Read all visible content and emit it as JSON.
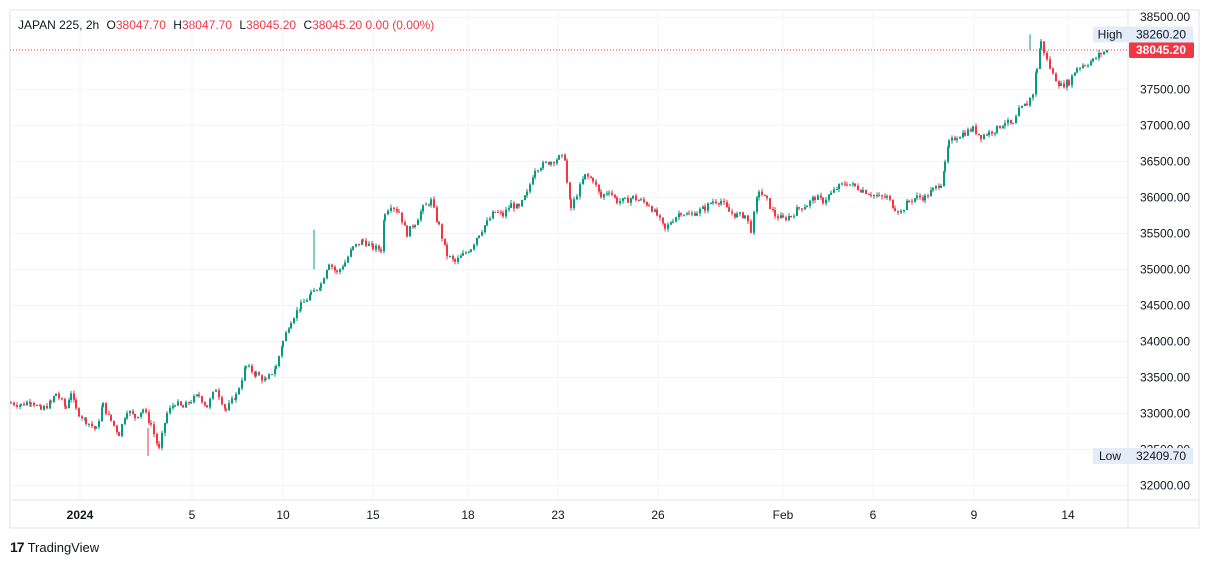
{
  "header": {
    "symbol": "JAPAN 225",
    "interval": "2h",
    "o_label": "O",
    "o_value": "38047.70",
    "h_label": "H",
    "h_value": "38047.70",
    "l_label": "L",
    "l_value": "38045.20",
    "c_label": "C",
    "c_value": "38045.20",
    "change": "0.00 (0.00%)"
  },
  "footer": {
    "brand": "TradingView",
    "logo_icon": "tradingview-logo-icon"
  },
  "colors": {
    "up": "#089981",
    "down": "#f23645",
    "grid": "#f0f3fa",
    "axis_text": "#131722",
    "label_bg": "#e3ecf7"
  },
  "chart_data": {
    "type": "candlestick",
    "title": "JAPAN 225, 2h",
    "ylim": [
      31800,
      38600
    ],
    "y_ticks": [
      "32000.00",
      "32500.00",
      "33000.00",
      "33500.00",
      "34000.00",
      "34500.00",
      "35000.00",
      "35500.00",
      "36000.00",
      "36500.00",
      "37000.00",
      "37500.00",
      "38000.00",
      "38500.00"
    ],
    "x_tick_labels": [
      "2024",
      "5",
      "10",
      "15",
      "18",
      "23",
      "26",
      "Feb",
      "6",
      "9",
      "14"
    ],
    "last_price": "38045.20",
    "high_label": "High",
    "high_value": "38260.20",
    "low_label": "Low",
    "low_value": "32409.70",
    "close_series": [
      [
        0,
        33150
      ],
      [
        10,
        33120
      ],
      [
        20,
        33180
      ],
      [
        30,
        33050
      ],
      [
        40,
        33150
      ],
      [
        45,
        33280
      ],
      [
        55,
        33080
      ],
      [
        60,
        33300
      ],
      [
        65,
        33050
      ],
      [
        75,
        32900
      ],
      [
        85,
        32780
      ],
      [
        92,
        33120
      ],
      [
        100,
        32900
      ],
      [
        108,
        32720
      ],
      [
        116,
        33050
      ],
      [
        124,
        32950
      ],
      [
        132,
        33060
      ],
      [
        140,
        32850
      ],
      [
        148,
        32500
      ],
      [
        156,
        33000
      ],
      [
        164,
        33150
      ],
      [
        172,
        33080
      ],
      [
        180,
        33180
      ],
      [
        188,
        33250
      ],
      [
        196,
        33100
      ],
      [
        205,
        33350
      ],
      [
        215,
        33050
      ],
      [
        225,
        33250
      ],
      [
        235,
        33650
      ],
      [
        245,
        33550
      ],
      [
        255,
        33450
      ],
      [
        265,
        33650
      ],
      [
        272,
        34000
      ],
      [
        280,
        34300
      ],
      [
        290,
        34500
      ],
      [
        300,
        34650
      ],
      [
        310,
        34800
      ],
      [
        318,
        35100
      ],
      [
        326,
        34950
      ],
      [
        334,
        35100
      ],
      [
        342,
        35300
      ],
      [
        352,
        35400
      ],
      [
        362,
        35300
      ],
      [
        370,
        35280
      ],
      [
        374,
        35800
      ],
      [
        380,
        35900
      ],
      [
        388,
        35800
      ],
      [
        396,
        35500
      ],
      [
        404,
        35650
      ],
      [
        412,
        35850
      ],
      [
        420,
        35950
      ],
      [
        428,
        35600
      ],
      [
        436,
        35200
      ],
      [
        444,
        35100
      ],
      [
        452,
        35200
      ],
      [
        460,
        35300
      ],
      [
        468,
        35500
      ],
      [
        476,
        35650
      ],
      [
        484,
        35800
      ],
      [
        492,
        35750
      ],
      [
        500,
        35900
      ],
      [
        508,
        35850
      ],
      [
        516,
        36050
      ],
      [
        524,
        36400
      ],
      [
        532,
        36450
      ],
      [
        540,
        36500
      ],
      [
        548,
        36550
      ],
      [
        554,
        36550
      ],
      [
        556,
        36200
      ],
      [
        560,
        35850
      ],
      [
        566,
        36050
      ],
      [
        574,
        36300
      ],
      [
        582,
        36250
      ],
      [
        590,
        36000
      ],
      [
        598,
        36100
      ],
      [
        606,
        35950
      ],
      [
        614,
        35950
      ],
      [
        622,
        36000
      ],
      [
        630,
        35950
      ],
      [
        638,
        35900
      ],
      [
        646,
        35750
      ],
      [
        654,
        35550
      ],
      [
        662,
        35700
      ],
      [
        670,
        35800
      ],
      [
        678,
        35750
      ],
      [
        686,
        35800
      ],
      [
        694,
        35850
      ],
      [
        702,
        35950
      ],
      [
        710,
        35950
      ],
      [
        718,
        35800
      ],
      [
        726,
        35750
      ],
      [
        734,
        35750
      ],
      [
        740,
        35550
      ],
      [
        748,
        36100
      ],
      [
        756,
        35950
      ],
      [
        764,
        35750
      ],
      [
        772,
        35700
      ],
      [
        780,
        35750
      ],
      [
        788,
        35850
      ],
      [
        796,
        35900
      ],
      [
        804,
        36000
      ],
      [
        812,
        35950
      ],
      [
        820,
        36050
      ],
      [
        828,
        36150
      ],
      [
        836,
        36200
      ],
      [
        844,
        36150
      ],
      [
        852,
        36100
      ],
      [
        860,
        36050
      ],
      [
        868,
        36000
      ],
      [
        876,
        36000
      ],
      [
        884,
        35850
      ],
      [
        890,
        35800
      ],
      [
        898,
        35950
      ],
      [
        906,
        36000
      ],
      [
        914,
        36000
      ],
      [
        922,
        36100
      ],
      [
        930,
        36200
      ],
      [
        934,
        36450
      ],
      [
        938,
        36750
      ],
      [
        946,
        36850
      ],
      [
        954,
        36900
      ],
      [
        962,
        36950
      ],
      [
        970,
        36850
      ],
      [
        978,
        36900
      ],
      [
        986,
        36950
      ],
      [
        994,
        37050
      ],
      [
        1002,
        37000
      ],
      [
        1008,
        37200
      ],
      [
        1016,
        37300
      ],
      [
        1022,
        37450
      ],
      [
        1026,
        37800
      ],
      [
        1030,
        38150
      ],
      [
        1036,
        37900
      ],
      [
        1042,
        37700
      ],
      [
        1050,
        37550
      ],
      [
        1058,
        37600
      ],
      [
        1066,
        37800
      ],
      [
        1074,
        37850
      ],
      [
        1082,
        37900
      ],
      [
        1090,
        38000
      ],
      [
        1098,
        38045
      ]
    ]
  }
}
